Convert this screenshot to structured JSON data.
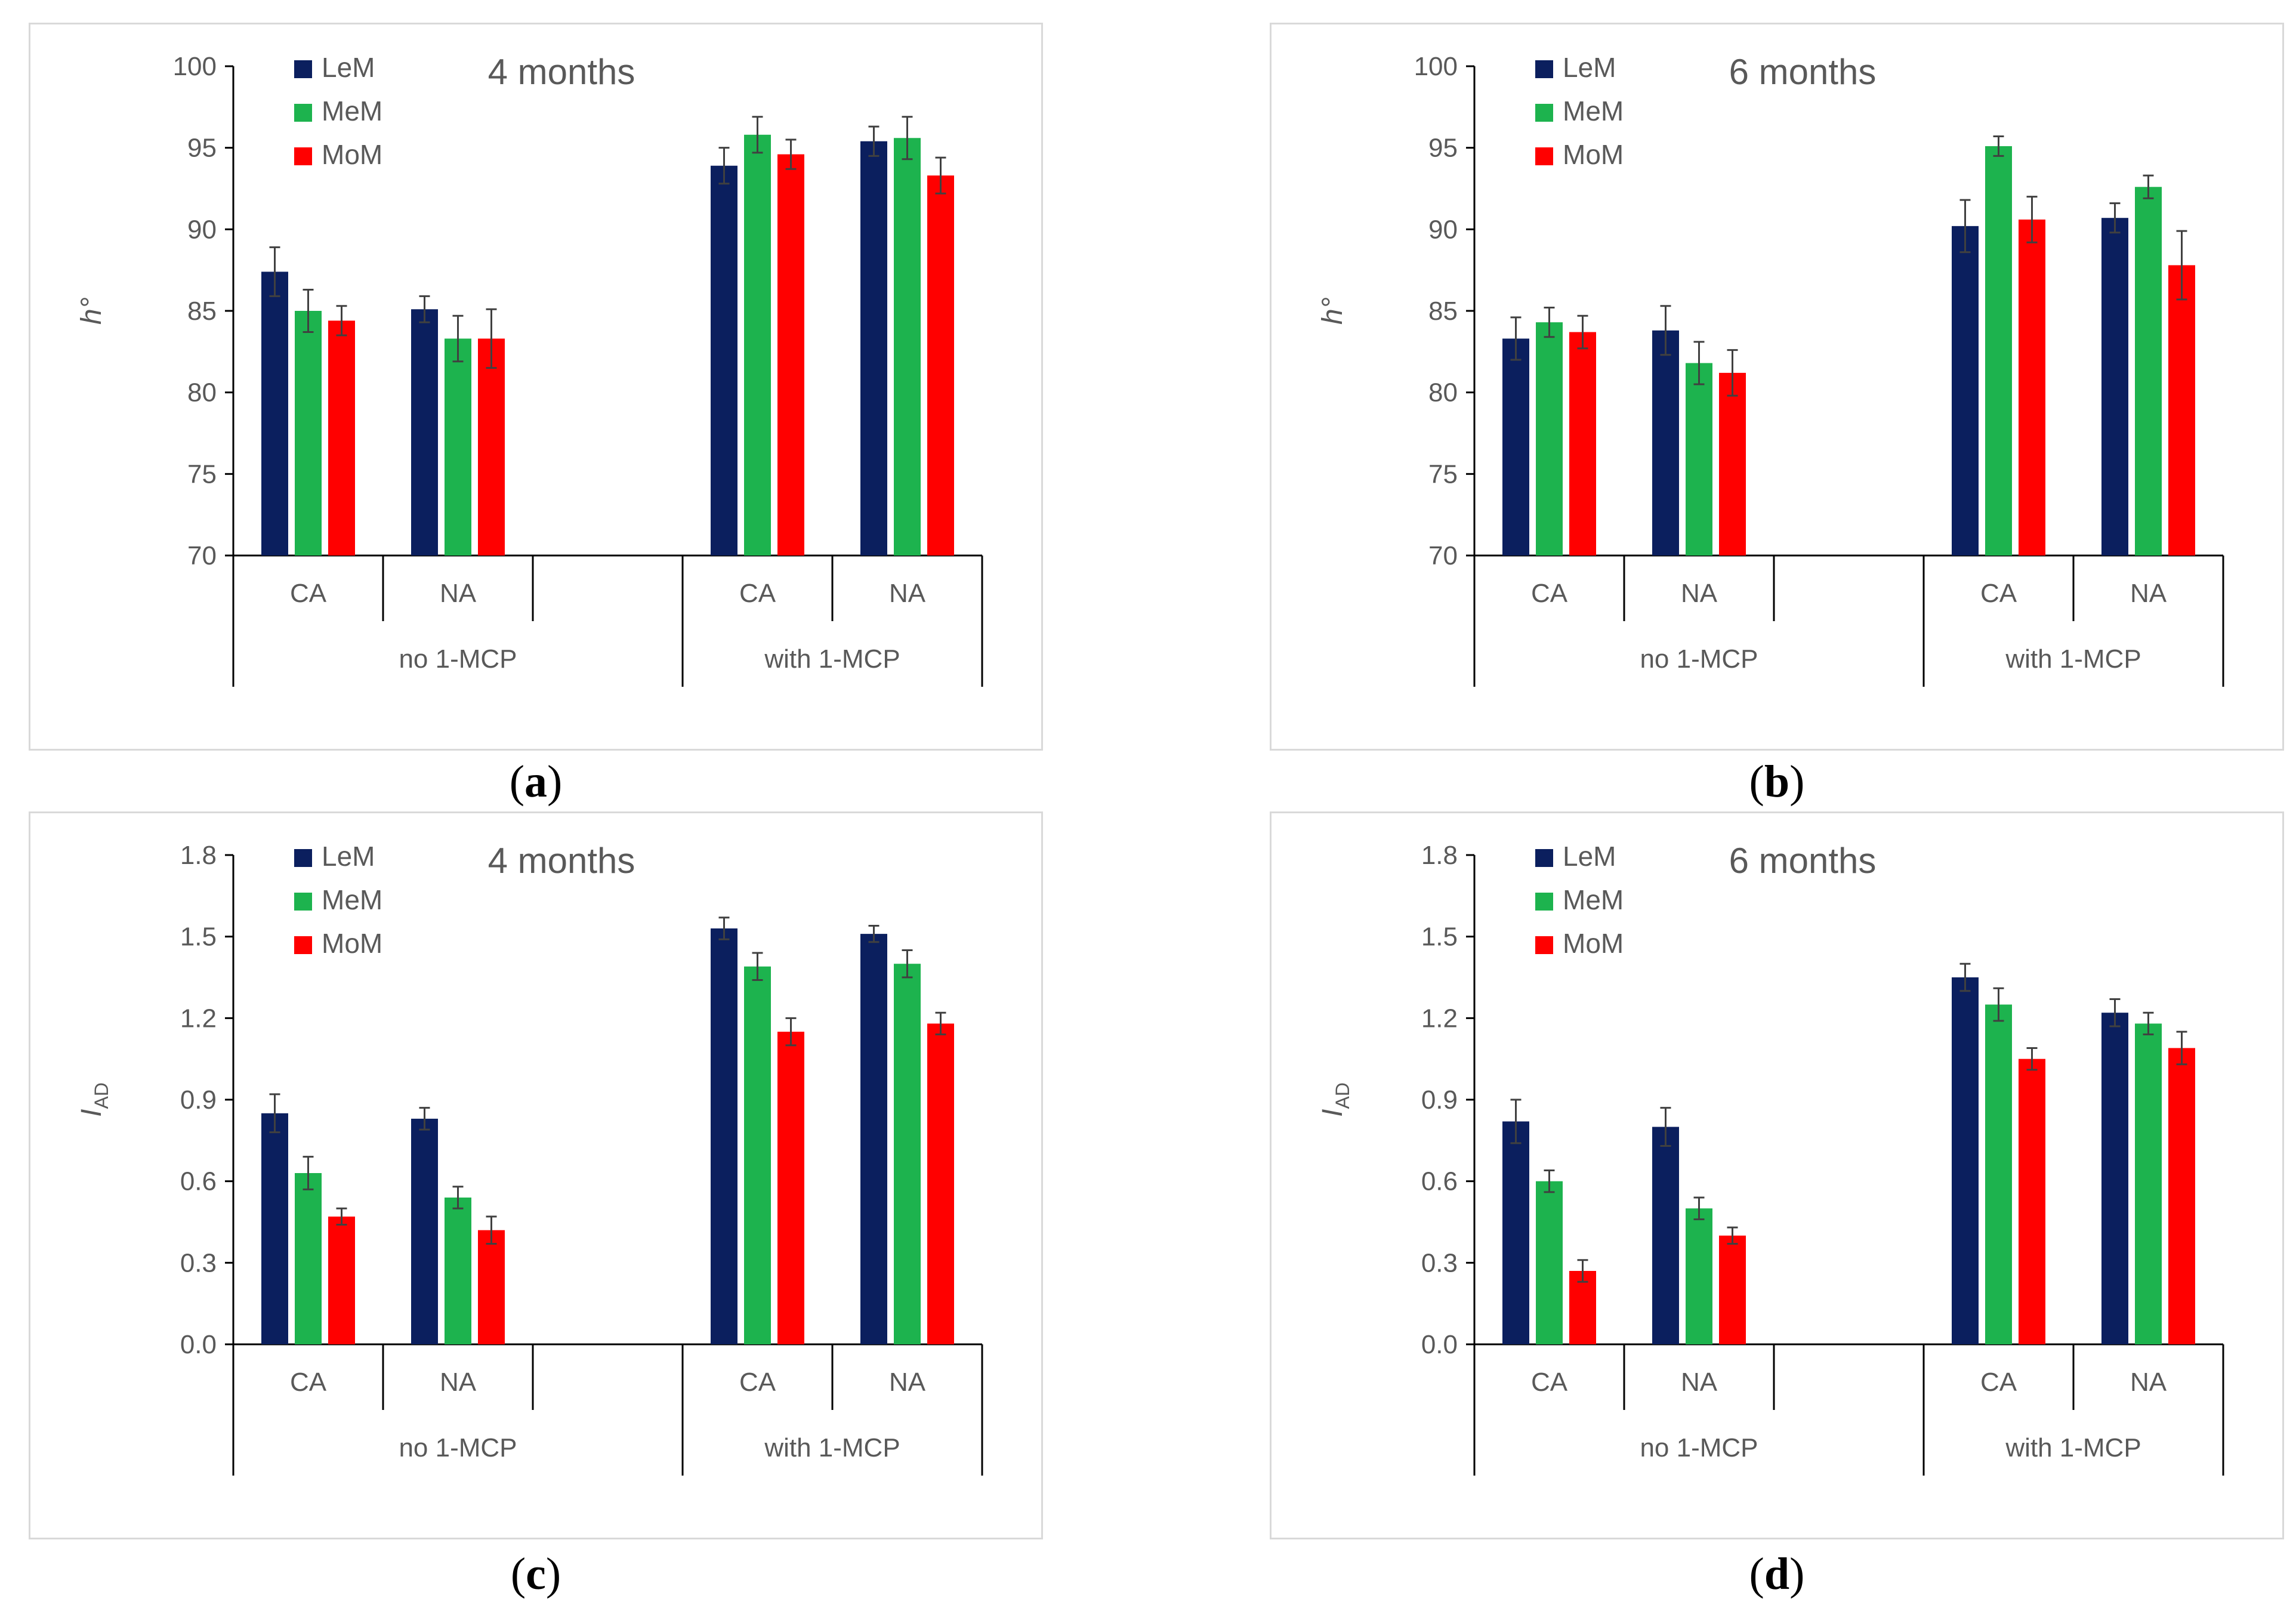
{
  "legend_labels": [
    "LeM",
    "MeM",
    "MoM"
  ],
  "colors": {
    "LeM": "#0b1f5e",
    "MeM": "#1db34e",
    "MoM": "#ff0000",
    "axis": "#000000",
    "text": "#595959",
    "errorbar": "#404040",
    "border": "#d9d9d9"
  },
  "storage_labels": [
    "CA",
    "NA",
    "CA",
    "NA"
  ],
  "treatment_labels": [
    "no 1-MCP",
    "with 1-MCP"
  ],
  "captions": {
    "a": "a",
    "b": "b",
    "c": "c",
    "d": "d"
  },
  "chart_data": [
    {
      "id": "a",
      "type": "bar",
      "title": "4 months",
      "ylabel": "h°",
      "ylim": [
        70,
        100
      ],
      "yticks": [
        "70",
        "75",
        "80",
        "85",
        "90",
        "95",
        "100"
      ],
      "categories": [
        "no 1-MCP CA",
        "no 1-MCP NA",
        "with 1-MCP CA",
        "with 1-MCP NA"
      ],
      "series": [
        {
          "name": "LeM",
          "values": [
            87.4,
            85.1,
            93.9,
            95.4
          ],
          "errors": [
            1.5,
            0.8,
            1.1,
            0.9
          ]
        },
        {
          "name": "MeM",
          "values": [
            85.0,
            83.3,
            95.8,
            95.6
          ],
          "errors": [
            1.3,
            1.4,
            1.1,
            1.3
          ]
        },
        {
          "name": "MoM",
          "values": [
            84.4,
            83.3,
            94.6,
            93.3
          ],
          "errors": [
            0.9,
            1.8,
            0.9,
            1.1
          ]
        }
      ]
    },
    {
      "id": "b",
      "type": "bar",
      "title": "6 months",
      "ylabel": "h°",
      "ylim": [
        70,
        100
      ],
      "yticks": [
        "70",
        "75",
        "80",
        "85",
        "90",
        "95",
        "100"
      ],
      "categories": [
        "no 1-MCP CA",
        "no 1-MCP NA",
        "with 1-MCP CA",
        "with 1-MCP NA"
      ],
      "series": [
        {
          "name": "LeM",
          "values": [
            83.3,
            83.8,
            90.2,
            90.7
          ],
          "errors": [
            1.3,
            1.5,
            1.6,
            0.9
          ]
        },
        {
          "name": "MeM",
          "values": [
            84.3,
            81.8,
            95.1,
            92.6
          ],
          "errors": [
            0.9,
            1.3,
            0.6,
            0.7
          ]
        },
        {
          "name": "MoM",
          "values": [
            83.7,
            81.2,
            90.6,
            87.8
          ],
          "errors": [
            1.0,
            1.4,
            1.4,
            2.1
          ]
        }
      ]
    },
    {
      "id": "c",
      "type": "bar",
      "title": "4 months",
      "ylabel": "I",
      "ylabel_sub": "AD",
      "ylim": [
        0,
        1.8
      ],
      "yticks": [
        "0.0",
        "0.3",
        "0.6",
        "0.9",
        "1.2",
        "1.5",
        "1.8"
      ],
      "categories": [
        "no 1-MCP CA",
        "no 1-MCP NA",
        "with 1-MCP CA",
        "with 1-MCP NA"
      ],
      "series": [
        {
          "name": "LeM",
          "values": [
            0.85,
            0.83,
            1.53,
            1.51
          ],
          "errors": [
            0.07,
            0.04,
            0.04,
            0.03
          ]
        },
        {
          "name": "MeM",
          "values": [
            0.63,
            0.54,
            1.39,
            1.4
          ],
          "errors": [
            0.06,
            0.04,
            0.05,
            0.05
          ]
        },
        {
          "name": "MoM",
          "values": [
            0.47,
            0.42,
            1.15,
            1.18
          ],
          "errors": [
            0.03,
            0.05,
            0.05,
            0.04
          ]
        }
      ]
    },
    {
      "id": "d",
      "type": "bar",
      "title": "6 months",
      "ylabel": "I",
      "ylabel_sub": "AD",
      "ylim": [
        0,
        1.8
      ],
      "yticks": [
        "0.0",
        "0.3",
        "0.6",
        "0.9",
        "1.2",
        "1.5",
        "1.8"
      ],
      "categories": [
        "no 1-MCP CA",
        "no 1-MCP NA",
        "with 1-MCP CA",
        "with 1-MCP NA"
      ],
      "series": [
        {
          "name": "LeM",
          "values": [
            0.82,
            0.8,
            1.35,
            1.22
          ],
          "errors": [
            0.08,
            0.07,
            0.05,
            0.05
          ]
        },
        {
          "name": "MeM",
          "values": [
            0.6,
            0.5,
            1.25,
            1.18
          ],
          "errors": [
            0.04,
            0.04,
            0.06,
            0.04
          ]
        },
        {
          "name": "MoM",
          "values": [
            0.27,
            0.4,
            1.05,
            1.09
          ],
          "errors": [
            0.04,
            0.03,
            0.04,
            0.06
          ]
        }
      ]
    }
  ]
}
